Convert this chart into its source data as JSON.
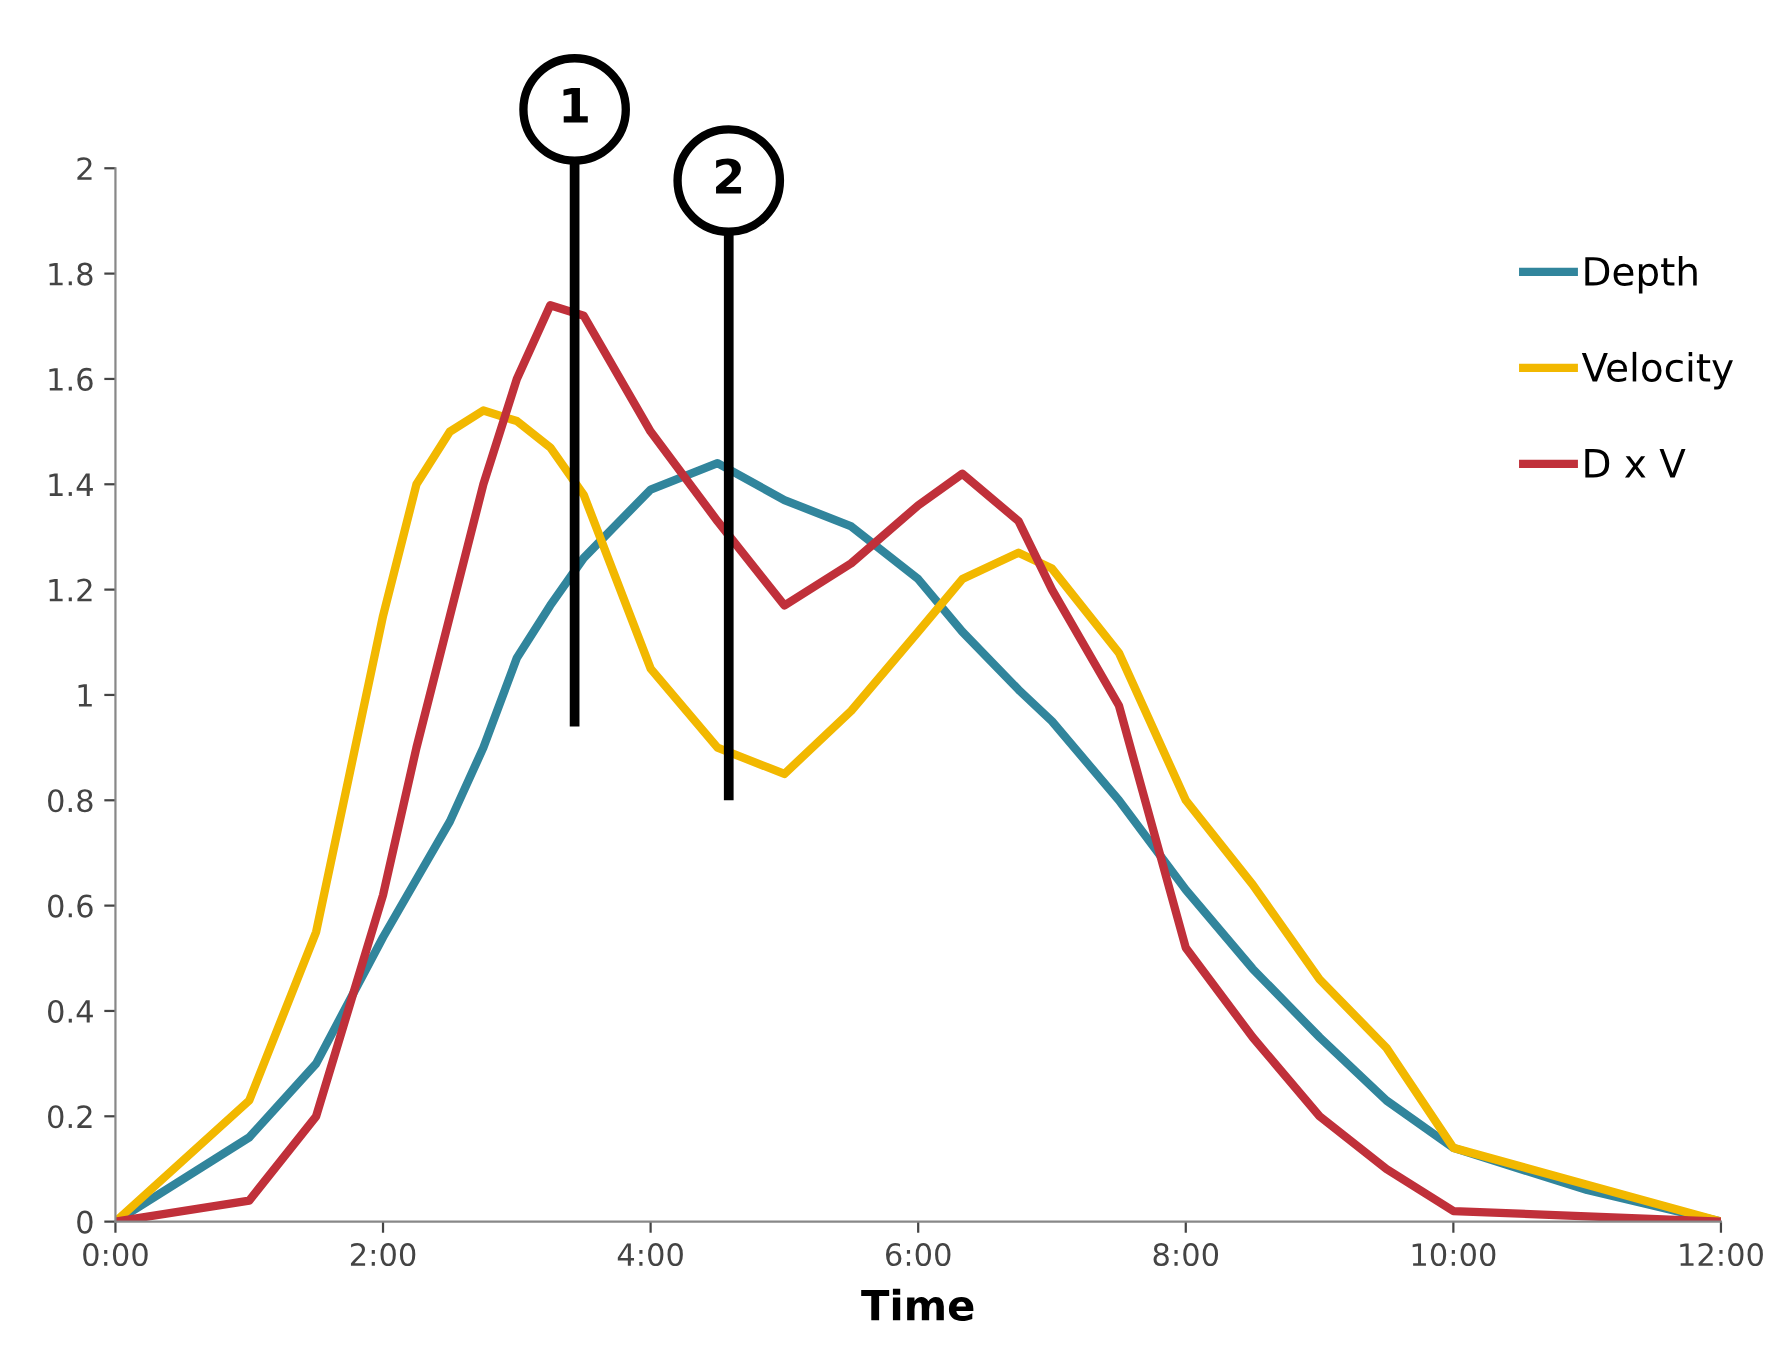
{
  "chart_data": {
    "type": "line",
    "xlabel": "Time",
    "x": [
      0,
      1,
      1.5,
      2,
      2.25,
      2.5,
      2.75,
      3,
      3.25,
      3.5,
      4,
      4.5,
      5,
      5.5,
      6,
      6.33,
      6.75,
      7,
      7.5,
      8,
      8.5,
      9,
      9.5,
      10,
      11,
      12
    ],
    "series": [
      {
        "name": "Depth",
        "color": "#31859c",
        "values": [
          0,
          0.16,
          0.3,
          0.54,
          0.65,
          0.76,
          0.9,
          1.07,
          1.17,
          1.26,
          1.39,
          1.44,
          1.37,
          1.32,
          1.22,
          1.12,
          1.01,
          0.95,
          0.8,
          0.63,
          0.48,
          0.35,
          0.23,
          0.14,
          0.06,
          0
        ]
      },
      {
        "name": "Velocity",
        "color": "#f2b800",
        "values": [
          0,
          0.23,
          0.55,
          1.15,
          1.4,
          1.5,
          1.54,
          1.52,
          1.47,
          1.38,
          1.05,
          0.9,
          0.85,
          0.97,
          1.12,
          1.22,
          1.27,
          1.24,
          1.08,
          0.8,
          0.64,
          0.46,
          0.33,
          0.14,
          0.07,
          0
        ]
      },
      {
        "name": "D x V",
        "color": "#c0303a",
        "values": [
          0,
          0.04,
          0.2,
          0.62,
          0.9,
          1.15,
          1.4,
          1.6,
          1.74,
          1.72,
          1.5,
          1.33,
          1.17,
          1.25,
          1.36,
          1.42,
          1.33,
          1.2,
          0.98,
          0.52,
          0.35,
          0.2,
          0.1,
          0.02,
          0.01,
          0
        ]
      }
    ],
    "annotations": [
      "1",
      "2"
    ],
    "xlim": [
      0,
      12
    ],
    "ylim": [
      0,
      2
    ],
    "xticks": [
      {
        "value": 0,
        "label": "0:00"
      },
      {
        "value": 2,
        "label": "2:00"
      },
      {
        "value": 4,
        "label": "4:00"
      },
      {
        "value": 6,
        "label": "6:00"
      },
      {
        "value": 8,
        "label": "8:00"
      },
      {
        "value": 10,
        "label": "10:00"
      },
      {
        "value": 12,
        "label": "12:00"
      }
    ],
    "yticks": [
      0,
      0.2,
      0.4,
      0.6,
      0.8,
      1,
      1.2,
      1.4,
      1.6,
      1.8,
      2
    ],
    "grid": false,
    "legend": "right",
    "marker": "none",
    "line_style": "solid"
  }
}
